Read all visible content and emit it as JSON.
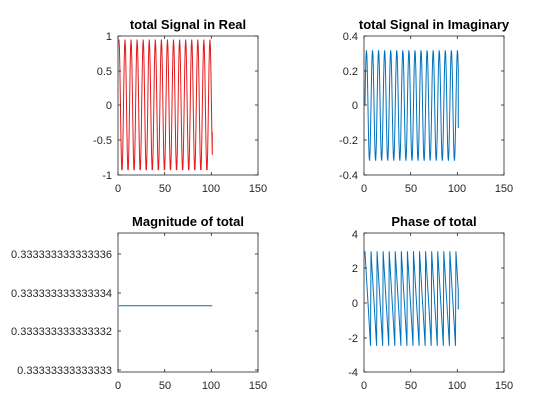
{
  "chart_data": [
    {
      "type": "line",
      "title": "total Signal in Real",
      "xlim": [
        0,
        150
      ],
      "ylim": [
        -1,
        1
      ],
      "xticks": [
        "0",
        "50",
        "100",
        "150"
      ],
      "yticks": [
        "1",
        "0.5",
        "0",
        "-0.5",
        "-1"
      ],
      "series": [
        {
          "color": "#e41a1c",
          "waveform": "cos",
          "amplitude": 0.95,
          "period": 6.5,
          "x_start": 1,
          "x_end": 101,
          "end_value": -0.38
        }
      ],
      "grid": false
    },
    {
      "type": "line",
      "title": "total Signal in Imaginary",
      "xlim": [
        0,
        150
      ],
      "ylim": [
        -0.4,
        0.4
      ],
      "xticks": [
        "0",
        "50",
        "100",
        "150"
      ],
      "yticks": [
        "0.4",
        "0.2",
        "0",
        "-0.2",
        "-0.4"
      ],
      "series": [
        {
          "color": "#0072bd",
          "waveform": "sin",
          "amplitude": 0.32,
          "period": 6.5,
          "x_start": 1,
          "x_end": 101,
          "end_value": -0.13
        }
      ],
      "grid": false
    },
    {
      "type": "line",
      "title": "Magnitude of total",
      "xlim": [
        0,
        150
      ],
      "ylim": [
        0.33333333333333,
        0.333333333333337
      ],
      "xticks": [
        "0",
        "50",
        "100",
        "150"
      ],
      "yticks": [
        "0.333333333333336",
        "0.333333333333334",
        "0.333333333333332",
        "0.33333333333333"
      ],
      "ytick_values": [
        0.333333333333336,
        0.333333333333334,
        0.333333333333332,
        0.33333333333333
      ],
      "series": [
        {
          "color": "#0072bd",
          "constant": 0.3333333333333333,
          "x_start": 1,
          "x_end": 101
        }
      ],
      "grid": false
    },
    {
      "type": "line",
      "title": "Phase of total",
      "xlim": [
        0,
        150
      ],
      "ylim": [
        -4,
        4
      ],
      "xticks": [
        "0",
        "50",
        "100",
        "150"
      ],
      "yticks": [
        "4",
        "2",
        "0",
        "-2",
        "-4"
      ],
      "series": [
        {
          "color": "#0072bd",
          "waveform": "sawtooth",
          "amplitude": 2.95,
          "period": 6.5,
          "x_start": 1,
          "x_end": 101,
          "end_value": -0.4
        }
      ],
      "grid": false
    }
  ]
}
